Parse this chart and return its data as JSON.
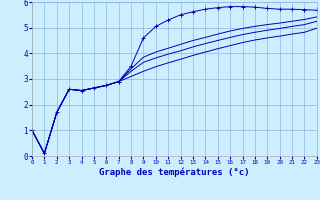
{
  "title": "Graphe des températures (°c)",
  "background_color": "#cceeff",
  "grid_color": "#88bbdd",
  "line_color": "#0000bb",
  "xlim": [
    0,
    23
  ],
  "ylim": [
    0,
    6
  ],
  "xticks": [
    0,
    1,
    2,
    3,
    4,
    5,
    6,
    7,
    8,
    9,
    10,
    11,
    12,
    13,
    14,
    15,
    16,
    17,
    18,
    19,
    20,
    21,
    22,
    23
  ],
  "yticks": [
    0,
    1,
    2,
    3,
    4,
    5,
    6
  ],
  "x_data": [
    0,
    1,
    2,
    3,
    4,
    5,
    6,
    7,
    8,
    9,
    10,
    11,
    12,
    13,
    14,
    15,
    16,
    17,
    18,
    19,
    20,
    21,
    22,
    23
  ],
  "line1_marker": [
    1.0,
    0.1,
    1.7,
    2.6,
    2.55,
    2.65,
    2.75,
    2.9,
    3.5,
    4.6,
    5.05,
    5.3,
    5.5,
    5.62,
    5.72,
    5.78,
    5.82,
    5.82,
    5.8,
    5.75,
    5.72,
    5.72,
    5.7,
    5.68
  ],
  "line2": [
    1.0,
    0.1,
    1.7,
    2.6,
    2.55,
    2.65,
    2.75,
    2.9,
    3.4,
    3.85,
    4.05,
    4.2,
    4.35,
    4.5,
    4.62,
    4.75,
    4.87,
    4.97,
    5.05,
    5.12,
    5.18,
    5.25,
    5.32,
    5.42
  ],
  "line3": [
    1.0,
    0.1,
    1.7,
    2.6,
    2.55,
    2.65,
    2.75,
    2.9,
    3.3,
    3.65,
    3.82,
    3.97,
    4.1,
    4.25,
    4.38,
    4.5,
    4.62,
    4.73,
    4.82,
    4.9,
    4.97,
    5.05,
    5.12,
    5.25
  ],
  "line4_plain": [
    1.0,
    0.1,
    1.7,
    2.6,
    2.55,
    2.65,
    2.75,
    2.9,
    3.1,
    3.3,
    3.48,
    3.63,
    3.77,
    3.92,
    4.05,
    4.18,
    4.3,
    4.42,
    4.52,
    4.6,
    4.67,
    4.75,
    4.82,
    4.98
  ]
}
